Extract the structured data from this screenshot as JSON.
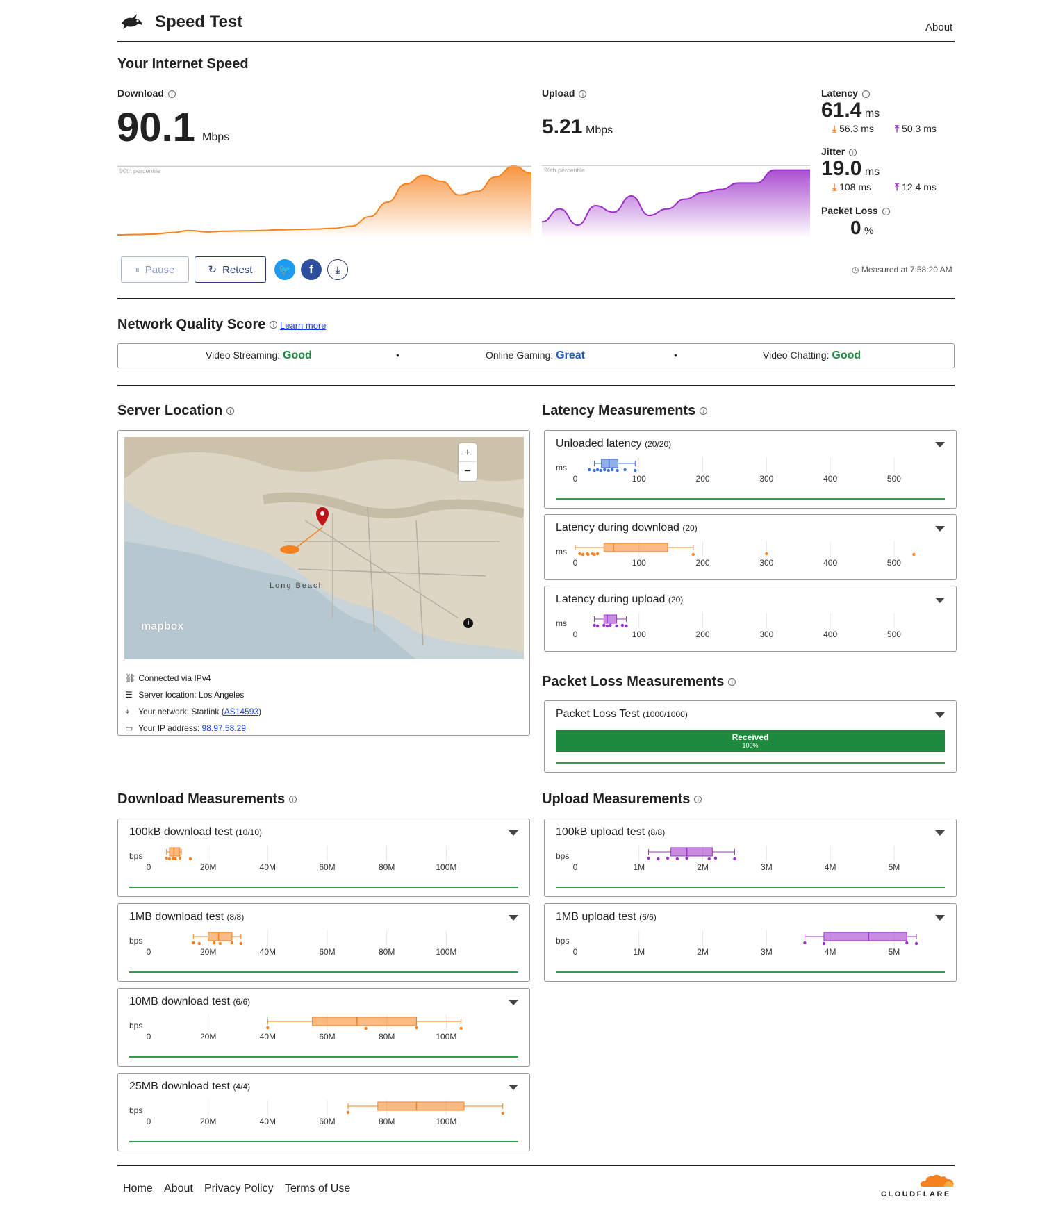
{
  "header": {
    "title": "Speed Test",
    "about": "About"
  },
  "speed": {
    "heading": "Your Internet Speed",
    "download": {
      "label": "Download",
      "value": "90.1",
      "unit": "Mbps",
      "percentile_label": "90th percentile"
    },
    "upload": {
      "label": "Upload",
      "value": "5.21",
      "unit": "Mbps",
      "percentile_label": "90th percentile"
    },
    "latency": {
      "label": "Latency",
      "value": "61.4",
      "unit": "ms",
      "down": "56.3 ms",
      "up": "50.3 ms"
    },
    "jitter": {
      "label": "Jitter",
      "value": "19.0",
      "unit": "ms",
      "down": "108 ms",
      "up": "12.4 ms"
    },
    "packet_loss": {
      "label": "Packet Loss",
      "value": "0",
      "unit": "%"
    }
  },
  "controls": {
    "pause": "Pause",
    "retest": "Retest",
    "measured": "Measured at 7:58:20 AM"
  },
  "quality": {
    "heading": "Network Quality Score",
    "learn_more": "Learn more",
    "streaming_label": "Video Streaming:",
    "streaming_value": "Good",
    "gaming_label": "Online Gaming:",
    "gaming_value": "Great",
    "chatting_label": "Video Chatting:",
    "chatting_value": "Good",
    "bullet": "•"
  },
  "server": {
    "heading": "Server Location",
    "map_label_city": "Long Beach",
    "map_brand": "mapbox",
    "zoom_in": "+",
    "zoom_out": "−",
    "connected": "Connected via IPv4",
    "location": "Server location: Los Angeles",
    "network_prefix": "Your network: Starlink (",
    "network_as": "AS14593",
    "network_suffix": ")",
    "ip_prefix": "Your IP address: ",
    "ip": "98.97.58.29"
  },
  "latency_section": {
    "heading": "Latency Measurements",
    "axis_unit": "ms",
    "ticks": [
      "0",
      "100",
      "200",
      "300",
      "400",
      "500"
    ],
    "cards": [
      {
        "title": "Unloaded latency",
        "count": "(20/20)"
      },
      {
        "title": "Latency during download",
        "count": "(20)"
      },
      {
        "title": "Latency during upload",
        "count": "(20)"
      }
    ]
  },
  "packet_section": {
    "heading": "Packet Loss Measurements",
    "card_title": "Packet Loss Test",
    "count": "(1000/1000)",
    "bar_label": "Received",
    "bar_pct": "100%",
    "received_fraction": 1.0
  },
  "download_section": {
    "heading": "Download Measurements",
    "axis_unit": "bps",
    "ticks": [
      "0",
      "20M",
      "40M",
      "60M",
      "80M",
      "100M"
    ],
    "cards": [
      {
        "title": "100kB download test",
        "count": "(10/10)"
      },
      {
        "title": "1MB download test",
        "count": "(8/8)"
      },
      {
        "title": "10MB download test",
        "count": "(6/6)"
      },
      {
        "title": "25MB download test",
        "count": "(4/4)"
      }
    ]
  },
  "upload_section": {
    "heading": "Upload Measurements",
    "axis_unit": "bps",
    "ticks": [
      "0",
      "1M",
      "2M",
      "3M",
      "4M",
      "5M"
    ],
    "cards": [
      {
        "title": "100kB upload test",
        "count": "(8/8)"
      },
      {
        "title": "1MB upload test",
        "count": "(6/6)"
      }
    ]
  },
  "footer": {
    "home": "Home",
    "about": "About",
    "privacy": "Privacy Policy",
    "terms": "Terms of Use",
    "brand": "CLOUDFLARE"
  },
  "colors": {
    "download": "#f6821f",
    "upload": "#9b30c8",
    "latency_unloaded": "#3b6fd4",
    "good": "#1e8a3e",
    "great": "#1c5dc4"
  },
  "boxplots": {
    "latency_unloaded": {
      "min": 30,
      "q1": 41,
      "median": 53,
      "q3": 67,
      "max": 94,
      "points": [
        22,
        30,
        35,
        40,
        46,
        52,
        58,
        66,
        78,
        94
      ]
    },
    "latency_download": {
      "min": 0,
      "q1": 45,
      "median": 60,
      "q3": 145,
      "max": 185,
      "points": [
        7,
        12,
        19,
        20,
        27,
        30,
        35,
        185,
        300,
        531
      ]
    },
    "latency_upload": {
      "min": 30,
      "q1": 45,
      "median": 50,
      "q3": 65,
      "max": 80,
      "points": [
        30,
        35,
        45,
        50,
        55,
        65,
        74,
        80
      ]
    },
    "dl_100kb": {
      "min": 6.0,
      "q1": 7.0,
      "median": 8.5,
      "q3": 10.5,
      "max": 11.0,
      "points": [
        6.0,
        7.0,
        8.3,
        9.0,
        10.5,
        14.0
      ]
    },
    "dl_1mb": {
      "min": 15.0,
      "q1": 20.0,
      "median": 23.5,
      "q3": 28.0,
      "max": 31.0,
      "points": [
        15.0,
        17.0,
        22.0,
        24.0,
        28.0,
        31.0
      ]
    },
    "dl_10mb": {
      "min": 40.0,
      "q1": 55.0,
      "median": 70.0,
      "q3": 90.0,
      "max": 105.0,
      "points": [
        40.0,
        73.0,
        90.0,
        105.0
      ]
    },
    "dl_25mb": {
      "min": 67.0,
      "q1": 77.0,
      "median": 90.0,
      "q3": 106.0,
      "max": 119.0,
      "points": [
        67.0,
        119.0
      ]
    },
    "ul_100kb": {
      "min": 1.15,
      "q1": 1.5,
      "median": 1.75,
      "q3": 2.15,
      "max": 2.5,
      "points": [
        1.15,
        1.3,
        1.45,
        1.6,
        1.75,
        2.1,
        2.2,
        2.5
      ]
    },
    "ul_1mb": {
      "min": 3.6,
      "q1": 3.9,
      "median": 4.6,
      "q3": 5.2,
      "max": 5.35,
      "points": [
        3.6,
        3.9,
        5.2,
        5.35
      ]
    }
  },
  "chart_data": [
    {
      "type": "area",
      "title": "Download",
      "series": [
        {
          "name": "Download",
          "values": [
            0.0,
            0.5,
            1.0,
            3.0,
            6.0,
            4.0,
            5.0,
            5.5,
            6.0,
            7.0,
            7.5,
            8.0,
            9.0,
            12.0,
            25.0,
            45.0,
            70.0,
            82.0,
            74.0,
            55.0,
            60.0,
            80.0,
            95.0,
            85.0
          ]
        }
      ],
      "percentile_label": "90th percentile"
    },
    {
      "type": "area",
      "title": "Upload",
      "series": [
        {
          "name": "Upload",
          "values": [
            20,
            40,
            15,
            45,
            35,
            60,
            30,
            40,
            55,
            65,
            70,
            80,
            80,
            100,
            100,
            100
          ]
        }
      ],
      "percentile_label": "90th percentile"
    }
  ]
}
